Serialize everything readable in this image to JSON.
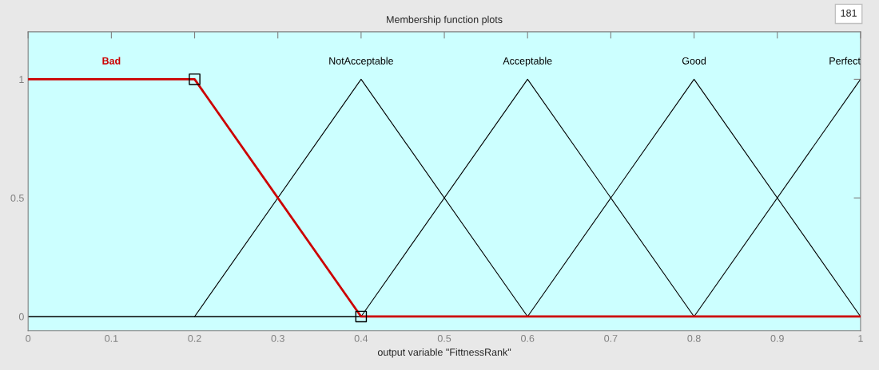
{
  "chart_data": {
    "type": "line",
    "title": "Membership function plots",
    "xlabel": "output variable \"FittnessRank\"",
    "annotations": [
      "181"
    ],
    "series": [
      {
        "name": "Bad",
        "color": "#cc0000",
        "x": [
          0,
          0.2,
          0.4,
          1
        ],
        "values": [
          1,
          1,
          0,
          0
        ]
      },
      {
        "type": "scatter",
        "color": "#000000",
        "marker": "square",
        "x": [
          0.2,
          0.4
        ],
        "values": [
          1,
          0
        ]
      },
      {
        "name": "NotAcceptable",
        "color": "#000000",
        "x": [
          0.2,
          0.4,
          0.6
        ],
        "values": [
          0,
          1,
          0
        ]
      },
      {
        "name": "Acceptable",
        "color": "#000000",
        "x": [
          0.4,
          0.6,
          0.8
        ],
        "values": [
          0,
          1,
          0
        ]
      },
      {
        "name": "Good",
        "color": "#000000",
        "x": [
          0.6,
          0.8,
          1
        ],
        "values": [
          0,
          1,
          0
        ]
      },
      {
        "name": "Perfect",
        "color": "#000000",
        "x": [
          0.8,
          1
        ],
        "values": [
          0,
          1
        ]
      }
    ],
    "ref_lines": [
      {
        "axis": "y",
        "value": 0,
        "color": "#000000"
      }
    ],
    "xlim": [
      0,
      1
    ],
    "ylim": [
      -0.06,
      1.2
    ],
    "xticks": [
      0,
      0.1,
      0.2,
      0.3,
      0.4,
      0.5,
      0.6,
      0.7,
      0.8,
      0.9,
      1
    ],
    "yticks": [
      0,
      0.5,
      1
    ],
    "grid": false,
    "legend": false
  }
}
